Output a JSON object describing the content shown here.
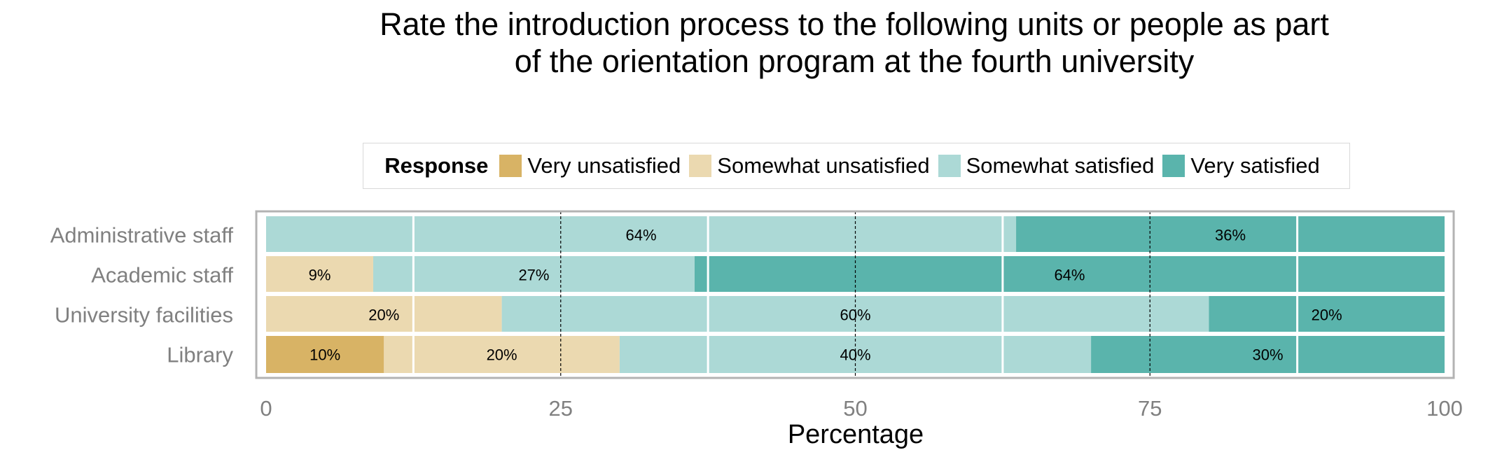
{
  "chart_data": {
    "type": "bar",
    "orientation": "horizontal",
    "stacked": true,
    "title": "Rate the introduction process to the following units or people as part of the orientation program at the fourth university",
    "xlabel": "Percentage",
    "ylabel": "",
    "xlim": [
      0,
      100
    ],
    "x_ticks": [
      "0",
      "25",
      "50",
      "75",
      "100"
    ],
    "categories": [
      "Administrative staff",
      "Academic staff",
      "University facilities",
      "Library"
    ],
    "legend": {
      "title": "Response",
      "position": "top"
    },
    "series": [
      {
        "name": "Very unsatisfied",
        "color": "#d8b365",
        "values": [
          0,
          0,
          0,
          10
        ],
        "labels": [
          "",
          "",
          "",
          "10%"
        ]
      },
      {
        "name": "Somewhat unsatisfied",
        "color": "#ebd9b0",
        "values": [
          0,
          9.09,
          20,
          20
        ],
        "labels": [
          "",
          "9%",
          "20%",
          "20%"
        ]
      },
      {
        "name": "Somewhat satisfied",
        "color": "#acd9d6",
        "values": [
          63.64,
          27.27,
          60,
          40
        ],
        "labels": [
          "64%",
          "27%",
          "60%",
          "40%"
        ]
      },
      {
        "name": "Very satisfied",
        "color": "#5ab4ac",
        "values": [
          36.36,
          63.64,
          20,
          30
        ],
        "labels": [
          "36%",
          "64%",
          "20%",
          "30%"
        ]
      }
    ],
    "grid": "vertical dashed at 25, 50, 75"
  }
}
